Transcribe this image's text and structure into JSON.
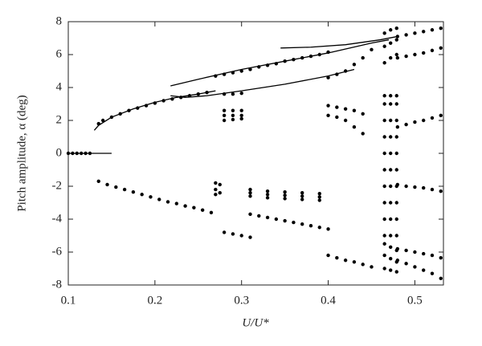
{
  "chart_data": {
    "type": "scatter",
    "xlabel": "U/U*",
    "ylabel": "Pitch amplitude, α (deg)",
    "xlim": [
      0.1,
      0.533
    ],
    "ylim": [
      -8,
      8
    ],
    "xticks": [
      0.1,
      0.2,
      0.3,
      0.4,
      0.5
    ],
    "yticks": [
      -8,
      -6,
      -4,
      -2,
      0,
      2,
      4,
      6,
      8
    ],
    "series": [
      {
        "mode": "lines",
        "color": "#000",
        "x": [
          0.1,
          0.15
        ],
        "y": [
          0,
          0
        ]
      },
      {
        "mode": "lines",
        "color": "#000",
        "x": [
          0.13,
          0.135,
          0.15,
          0.175,
          0.2,
          0.225,
          0.25,
          0.27
        ],
        "y": [
          1.4,
          1.7,
          2.2,
          2.7,
          3.1,
          3.4,
          3.6,
          3.8
        ]
      },
      {
        "mode": "lines",
        "color": "#000",
        "x": [
          0.218,
          0.25,
          0.3,
          0.35,
          0.4,
          0.45,
          0.47
        ],
        "y": [
          4.1,
          4.5,
          5.1,
          5.6,
          6.1,
          6.7,
          6.9
        ]
      },
      {
        "mode": "lines",
        "color": "#000",
        "x": [
          0.218,
          0.235,
          0.26,
          0.3,
          0.35,
          0.4,
          0.43
        ],
        "y": [
          3.5,
          3.4,
          3.5,
          3.8,
          4.2,
          4.7,
          5.1
        ]
      },
      {
        "mode": "lines",
        "color": "#000",
        "x": [
          0.345,
          0.38,
          0.42,
          0.46,
          0.48
        ],
        "y": [
          6.4,
          6.45,
          6.6,
          6.9,
          7.1
        ]
      },
      {
        "mode": "markers",
        "color": "#000",
        "x": [
          0.1,
          0.105,
          0.11,
          0.115,
          0.12,
          0.125,
          0.135,
          0.14,
          0.15,
          0.16,
          0.17,
          0.18,
          0.19,
          0.2,
          0.21,
          0.22,
          0.23,
          0.24,
          0.25,
          0.26,
          0.135,
          0.145,
          0.155,
          0.165,
          0.175,
          0.185,
          0.195,
          0.205,
          0.215,
          0.225,
          0.235,
          0.245,
          0.255,
          0.265,
          0.27,
          0.27,
          0.27,
          0.275,
          0.275,
          0.27,
          0.28,
          0.29,
          0.3,
          0.31,
          0.32,
          0.33,
          0.34,
          0.35,
          0.36,
          0.37,
          0.38,
          0.39,
          0.4,
          0.28,
          0.29,
          0.3,
          0.28,
          0.29,
          0.3,
          0.28,
          0.29,
          0.3,
          0.28,
          0.29,
          0.3,
          0.28,
          0.29,
          0.3,
          0.31,
          0.31,
          0.32,
          0.33,
          0.34,
          0.35,
          0.36,
          0.37,
          0.38,
          0.39,
          0.4,
          0.31,
          0.33,
          0.35,
          0.37,
          0.39,
          0.31,
          0.33,
          0.35,
          0.37,
          0.39,
          0.31,
          0.33,
          0.35,
          0.37,
          0.39,
          0.4,
          0.41,
          0.42,
          0.43,
          0.44,
          0.45,
          0.4,
          0.41,
          0.42,
          0.43,
          0.44,
          0.4,
          0.41,
          0.42,
          0.43,
          0.44,
          0.4,
          0.41,
          0.42,
          0.43,
          0.44,
          0.45,
          0.465,
          0.465,
          0.465,
          0.465,
          0.465,
          0.465,
          0.465,
          0.465,
          0.465,
          0.465,
          0.472,
          0.472,
          0.472,
          0.472,
          0.472,
          0.472,
          0.472,
          0.472,
          0.472,
          0.472,
          0.479,
          0.479,
          0.479,
          0.479,
          0.479,
          0.479,
          0.479,
          0.479,
          0.479,
          0.479,
          0.465,
          0.465,
          0.465,
          0.472,
          0.472,
          0.472,
          0.479,
          0.479,
          0.479,
          0.465,
          0.465,
          0.465,
          0.472,
          0.472,
          0.472,
          0.479,
          0.479,
          0.479,
          0.48,
          0.49,
          0.5,
          0.51,
          0.52,
          0.53,
          0.48,
          0.49,
          0.5,
          0.51,
          0.52,
          0.53,
          0.48,
          0.49,
          0.5,
          0.51,
          0.52,
          0.53,
          0.48,
          0.49,
          0.5,
          0.51,
          0.52,
          0.53,
          0.48,
          0.49,
          0.5,
          0.51,
          0.52,
          0.53,
          0.48,
          0.49,
          0.5,
          0.51,
          0.52,
          0.53
        ],
        "y": [
          0,
          0,
          0,
          0,
          0,
          0,
          1.8,
          2.0,
          2.2,
          2.4,
          2.6,
          2.75,
          2.9,
          3.05,
          3.2,
          3.3,
          3.4,
          3.5,
          3.6,
          3.7,
          -1.7,
          -1.9,
          -2.05,
          -2.2,
          -2.35,
          -2.5,
          -2.65,
          -2.8,
          -2.95,
          -3.05,
          -3.2,
          -3.3,
          -3.45,
          -3.6,
          -1.8,
          -2.2,
          -2.5,
          -1.9,
          -2.4,
          4.7,
          4.8,
          4.9,
          5.0,
          5.1,
          5.25,
          5.35,
          5.45,
          5.6,
          5.7,
          5.8,
          5.9,
          6.0,
          6.15,
          3.6,
          3.6,
          3.65,
          2.6,
          2.6,
          2.6,
          2.3,
          2.3,
          2.3,
          2.0,
          2.05,
          2.1,
          -4.8,
          -4.9,
          -5.0,
          -5.1,
          -3.7,
          -3.8,
          -3.9,
          -4.0,
          -4.1,
          -4.2,
          -4.3,
          -4.4,
          -4.5,
          -4.6,
          -2.2,
          -2.3,
          -2.35,
          -2.4,
          -2.45,
          -2.4,
          -2.5,
          -2.55,
          -2.6,
          -2.65,
          -2.6,
          -2.7,
          -2.75,
          -2.8,
          -2.85,
          4.6,
          4.8,
          5.0,
          5.4,
          5.8,
          6.3,
          2.9,
          2.8,
          2.7,
          2.6,
          2.4,
          2.3,
          2.2,
          2.0,
          1.6,
          1.2,
          -6.2,
          -6.35,
          -6.5,
          -6.6,
          -6.75,
          -6.9,
          -5,
          -4,
          -3,
          -2,
          -1,
          0,
          1,
          2,
          3,
          3.5,
          -5,
          -4,
          -3,
          -2,
          -1,
          0,
          1,
          2,
          3,
          3.5,
          -5,
          -4,
          -3,
          -2,
          -1,
          0,
          1,
          2,
          3,
          3.5,
          5.5,
          6.5,
          7.3,
          5.8,
          6.7,
          7.5,
          6.0,
          6.9,
          7.6,
          -5.5,
          -6.2,
          -7.0,
          -5.7,
          -6.4,
          -7.1,
          -5.9,
          -6.6,
          -7.2,
          7.1,
          7.2,
          7.3,
          7.4,
          7.5,
          7.6,
          5.8,
          5.9,
          6.0,
          6.1,
          6.25,
          6.4,
          1.6,
          1.75,
          1.9,
          2.0,
          2.15,
          2.3,
          -1.9,
          -2.0,
          -2.05,
          -2.1,
          -2.2,
          -2.3,
          -6.5,
          -6.7,
          -6.9,
          -7.1,
          -7.3,
          -7.6,
          -5.8,
          -5.9,
          -6.0,
          -6.1,
          -6.2,
          -6.35
        ]
      }
    ]
  }
}
